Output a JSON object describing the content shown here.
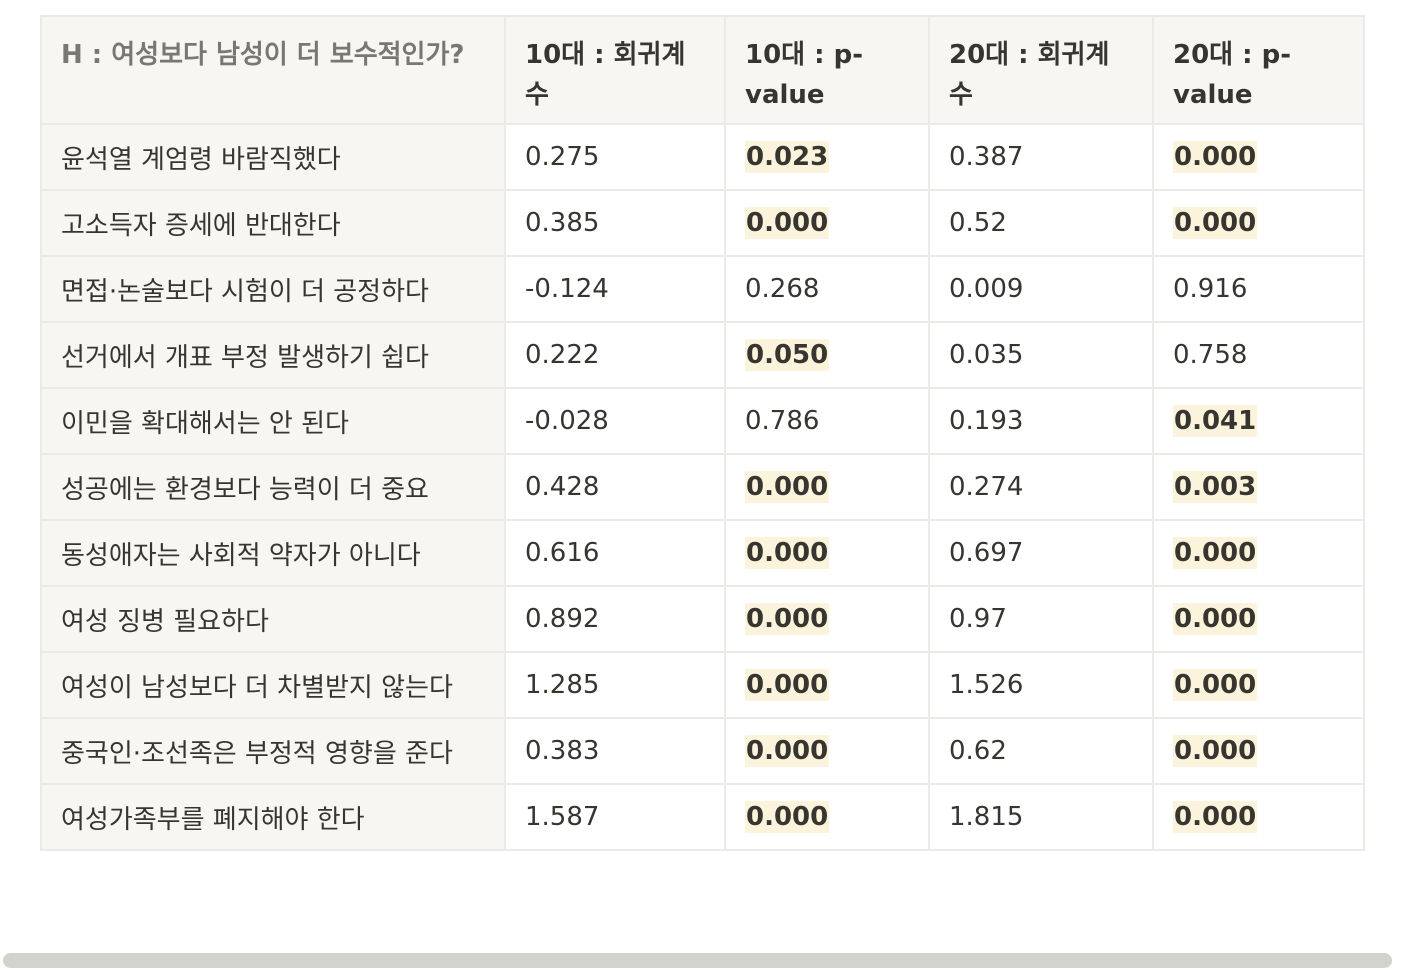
{
  "table": {
    "headers": [
      "H : 여성보다 남성이 더 보수적인가?",
      "10대 : 회귀계수",
      "10대 : p-value",
      "20대 : 회귀계수",
      "20대 : p-value"
    ],
    "rows": [
      {
        "item": "윤석열 계엄령 바람직했다",
        "coef10": "0.275",
        "p10": "0.023",
        "p10_sig": true,
        "coef20": "0.387",
        "p20": "0.000",
        "p20_sig": true
      },
      {
        "item": "고소득자 증세에 반대한다",
        "coef10": "0.385",
        "p10": "0.000",
        "p10_sig": true,
        "coef20": "0.52",
        "p20": "0.000",
        "p20_sig": true
      },
      {
        "item": "면접·논술보다 시험이 더 공정하다",
        "coef10": "-0.124",
        "p10": "0.268",
        "p10_sig": false,
        "coef20": "0.009",
        "p20": "0.916",
        "p20_sig": false
      },
      {
        "item": "선거에서 개표 부정 발생하기 쉽다",
        "coef10": "0.222",
        "p10": "0.050",
        "p10_sig": true,
        "coef20": "0.035",
        "p20": "0.758",
        "p20_sig": false
      },
      {
        "item": "이민을 확대해서는 안 된다",
        "coef10": "-0.028",
        "p10": "0.786",
        "p10_sig": false,
        "coef20": "0.193",
        "p20": "0.041",
        "p20_sig": true
      },
      {
        "item": "성공에는 환경보다 능력이 더 중요",
        "coef10": "0.428",
        "p10": "0.000",
        "p10_sig": true,
        "coef20": "0.274",
        "p20": "0.003",
        "p20_sig": true
      },
      {
        "item": "동성애자는 사회적 약자가 아니다",
        "coef10": "0.616",
        "p10": "0.000",
        "p10_sig": true,
        "coef20": "0.697",
        "p20": "0.000",
        "p20_sig": true
      },
      {
        "item": "여성 징병 필요하다",
        "coef10": "0.892",
        "p10": "0.000",
        "p10_sig": true,
        "coef20": "0.97",
        "p20": "0.000",
        "p20_sig": true
      },
      {
        "item": "여성이 남성보다 더 차별받지 않는다",
        "coef10": "1.285",
        "p10": "0.000",
        "p10_sig": true,
        "coef20": "1.526",
        "p20": "0.000",
        "p20_sig": true
      },
      {
        "item": "중국인·조선족은 부정적 영향을 준다",
        "coef10": "0.383",
        "p10": "0.000",
        "p10_sig": true,
        "coef20": "0.62",
        "p20": "0.000",
        "p20_sig": true
      },
      {
        "item": "여성가족부를 폐지해야 한다",
        "coef10": "1.587",
        "p10": "0.000",
        "p10_sig": true,
        "coef20": "1.815",
        "p20": "0.000",
        "p20_sig": true
      }
    ]
  }
}
